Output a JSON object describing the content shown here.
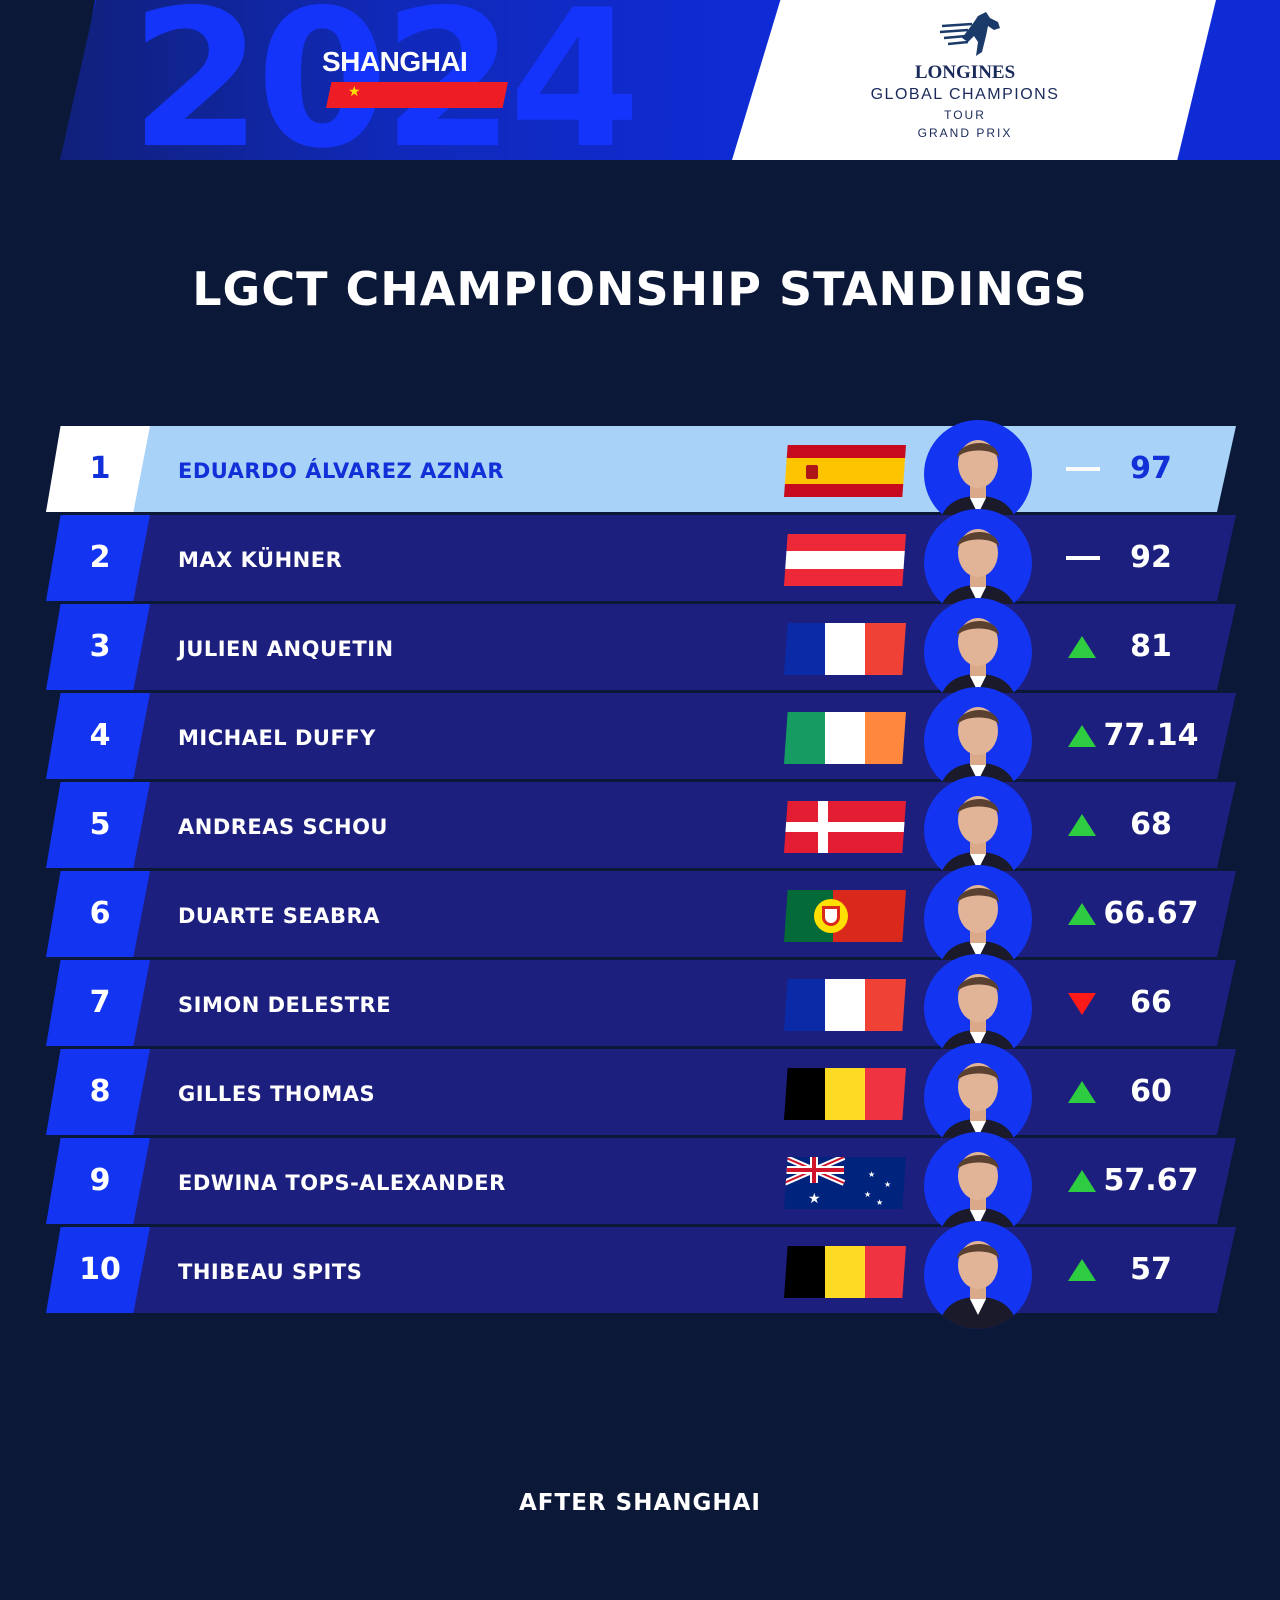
{
  "header": {
    "year": "2024",
    "city": "SHANGHAI",
    "logo": {
      "line1": "LONGINES",
      "line2": "GLOBAL CHAMPIONS",
      "line3": "TOUR",
      "line4": "GRAND PRIX"
    }
  },
  "title": "LGCT CHAMPIONSHIP STANDINGS",
  "standings": [
    {
      "rank": "1",
      "name": "EDUARDO ÁLVAREZ AZNAR",
      "flag": "spain-flag",
      "trend": "same",
      "points": "97"
    },
    {
      "rank": "2",
      "name": "MAX KÜHNER",
      "flag": "austria-flag",
      "trend": "same",
      "points": "92"
    },
    {
      "rank": "3",
      "name": "JULIEN ANQUETIN",
      "flag": "france-flag",
      "trend": "up",
      "points": "81"
    },
    {
      "rank": "4",
      "name": "MICHAEL DUFFY",
      "flag": "ireland-flag",
      "trend": "up",
      "points": "77.14"
    },
    {
      "rank": "5",
      "name": "ANDREAS SCHOU",
      "flag": "denmark-flag",
      "trend": "up",
      "points": "68"
    },
    {
      "rank": "6",
      "name": "DUARTE SEABRA",
      "flag": "portugal-flag",
      "trend": "up",
      "points": "66.67"
    },
    {
      "rank": "7",
      "name": "SIMON DELESTRE",
      "flag": "france-flag",
      "trend": "down",
      "points": "66"
    },
    {
      "rank": "8",
      "name": "GILLES THOMAS",
      "flag": "belgium-flag",
      "trend": "up",
      "points": "60"
    },
    {
      "rank": "9",
      "name": "EDWINA TOPS-ALEXANDER",
      "flag": "australia-flag",
      "trend": "up",
      "points": "57.67"
    },
    {
      "rank": "10",
      "name": "THIBEAU SPITS",
      "flag": "belgium-flag",
      "trend": "up",
      "points": "57"
    }
  ],
  "footer": "AFTER SHANGHAI",
  "colors": {
    "background": "#0b1838",
    "row": "#1d1f7e",
    "rank_box": "#1334f0",
    "leader_row": "#a8d2f7",
    "leader_text": "#1230d8",
    "up": "#2ecc40",
    "down": "#ff1a1a"
  }
}
